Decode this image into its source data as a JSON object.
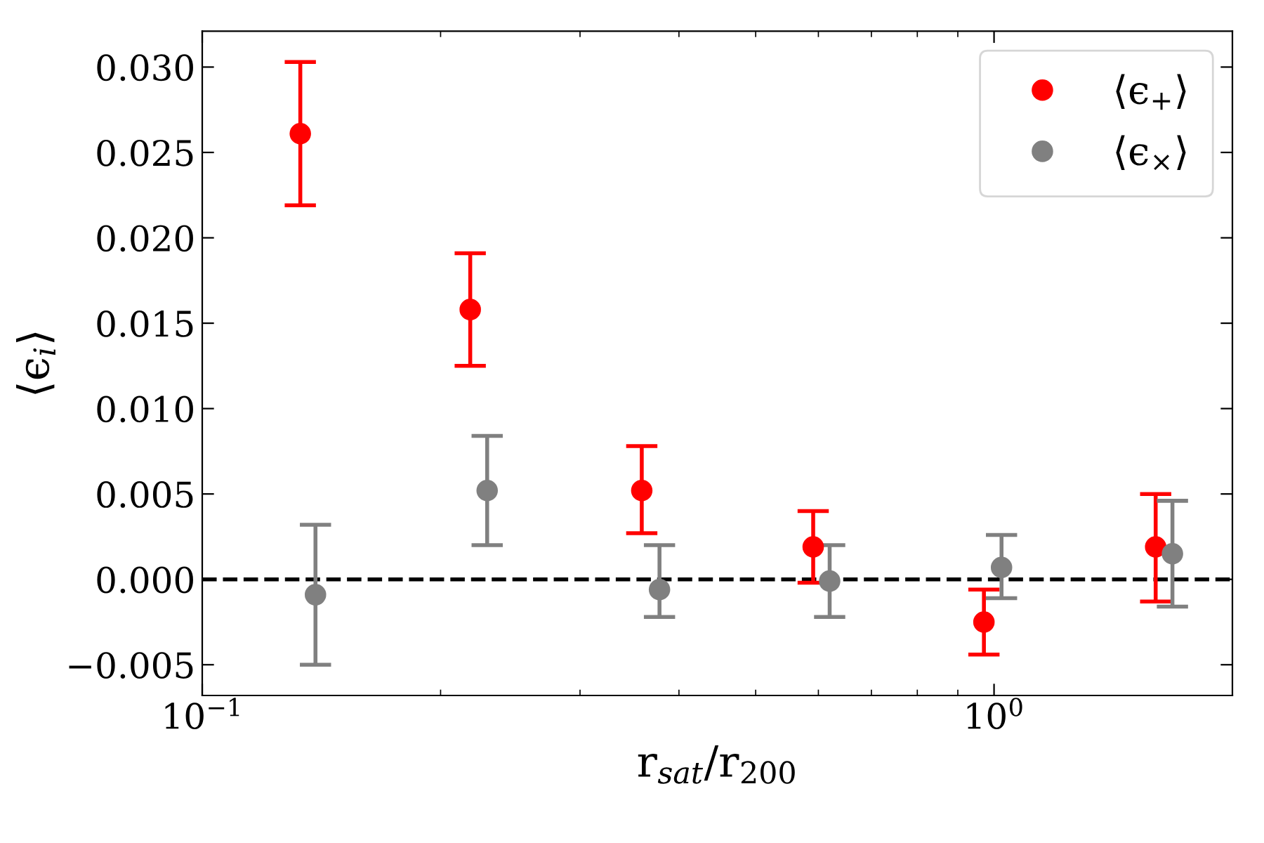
{
  "chart_data": {
    "type": "scatter",
    "xlabel": "r$_{sat}$/r$_{200}$",
    "ylabel": "⟨ϵ$_{i}$⟩",
    "log": "x",
    "xlim": [
      0.1,
      2.0
    ],
    "ylim": [
      -0.0068,
      0.0321
    ],
    "xticks": [
      {
        "value": 0.1,
        "label": "10$^{−1}$"
      },
      {
        "value": 1,
        "label": "10$^{0}$"
      }
    ],
    "yticks": [
      {
        "value": -0.005,
        "label": "−0.005"
      },
      {
        "value": 0,
        "label": "0.000"
      },
      {
        "value": 0.005,
        "label": "0.005"
      },
      {
        "value": 0.01,
        "label": "0.010"
      },
      {
        "value": 0.015,
        "label": "0.015"
      },
      {
        "value": 0.02,
        "label": "0.020"
      },
      {
        "value": 0.025,
        "label": "0.025"
      },
      {
        "value": 0.03,
        "label": "0.030"
      }
    ],
    "grid": false,
    "legend": "top right",
    "marker": "circle",
    "ref_lines": [
      {
        "axis": "y",
        "value": 0,
        "color": "#000000",
        "line_style": "dashed"
      }
    ],
    "series": [
      {
        "name": "⟨ϵ$_{+}$⟩",
        "color": "#ff0000",
        "x": [
          0.133,
          0.218,
          0.359,
          0.591,
          0.971,
          1.6
        ],
        "values": [
          0.0261,
          0.0158,
          0.0052,
          0.0019,
          -0.0025,
          0.0019
        ],
        "errors": [
          [
            0.0219,
            0.0303
          ],
          [
            0.0125,
            0.0191
          ],
          [
            0.0027,
            0.0078
          ],
          [
            -0.0002,
            0.004
          ],
          [
            -0.0044,
            -0.0006
          ],
          [
            -0.0013,
            0.005
          ]
        ]
      },
      {
        "name": "⟨ϵ$_{×}$⟩",
        "color": "#808080",
        "x": [
          0.139,
          0.229,
          0.378,
          0.62,
          1.022,
          1.68
        ],
        "values": [
          -0.0009,
          0.0052,
          -0.0006,
          -0.0001,
          0.0007,
          0.0015
        ],
        "errors": [
          [
            -0.005,
            0.0032
          ],
          [
            0.002,
            0.0084
          ],
          [
            -0.0022,
            0.002
          ],
          [
            -0.0022,
            0.002
          ],
          [
            -0.0011,
            0.0026
          ],
          [
            -0.0016,
            0.0046
          ]
        ]
      }
    ]
  }
}
